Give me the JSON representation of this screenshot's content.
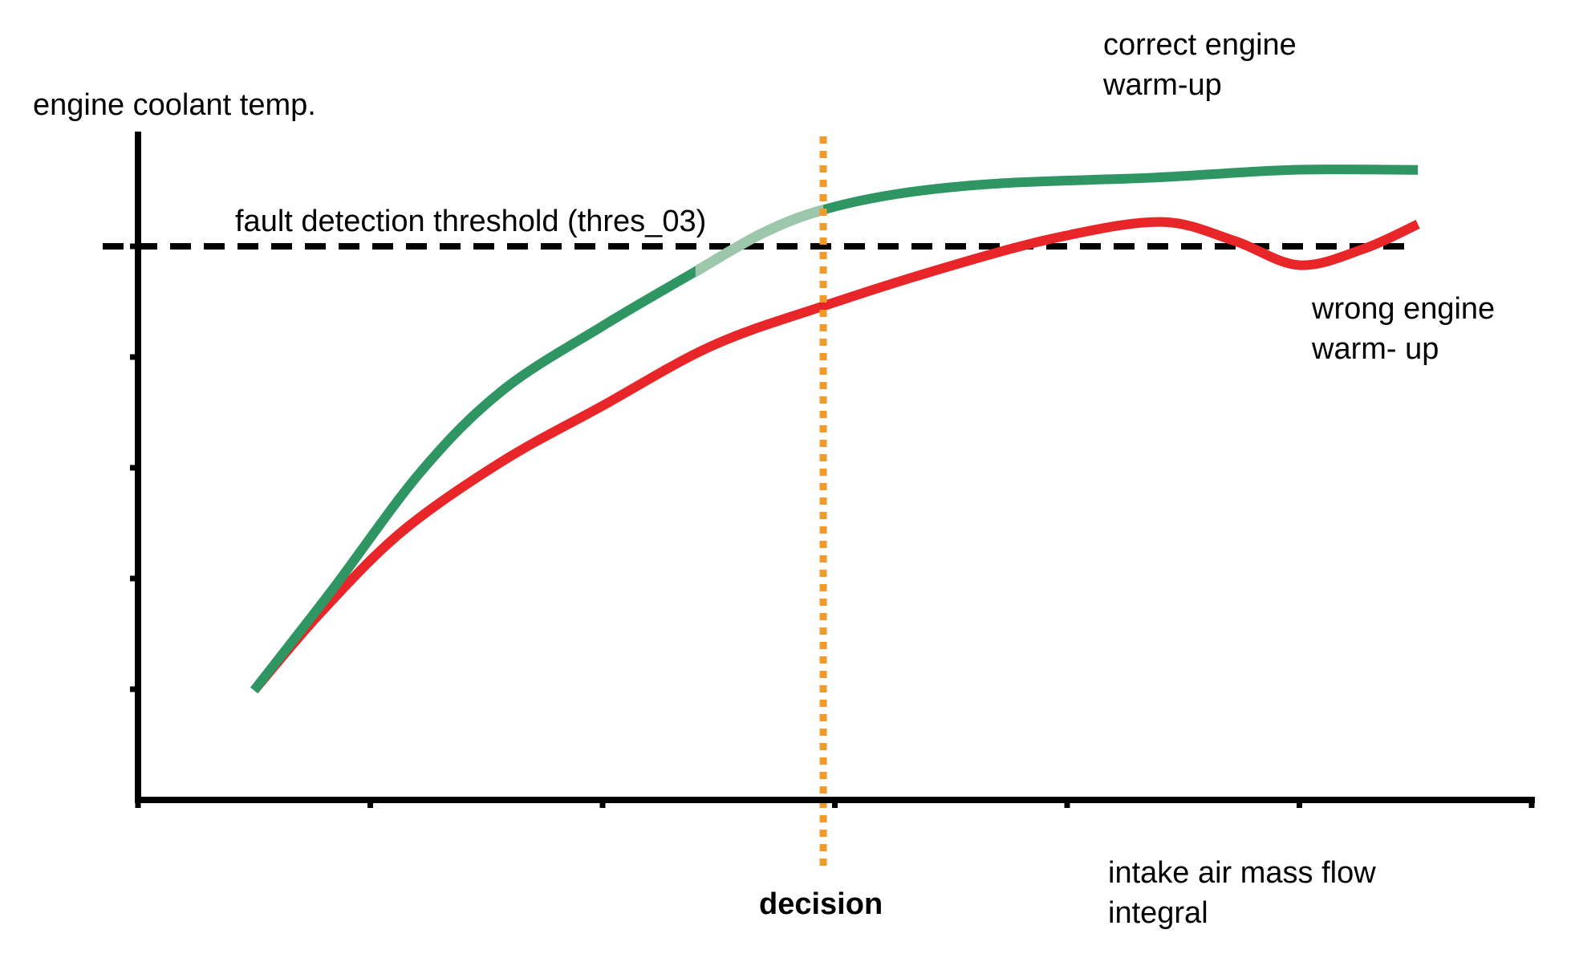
{
  "chart_data": {
    "type": "line",
    "title": "",
    "ylabel": "engine coolant temp.",
    "xlabel": [
      "intake air mass flow",
      "integral"
    ],
    "xlim": [
      0,
      6
    ],
    "ylim": [
      0,
      6
    ],
    "x_ticks": [
      0,
      1,
      2,
      3,
      4,
      5,
      6
    ],
    "y_ticks": [
      0,
      1,
      2,
      3,
      4,
      5
    ],
    "tick_labels_shown": false,
    "grid": false,
    "threshold": {
      "label": "fault detection threshold (thres_03)",
      "value": 5,
      "style": "dashed",
      "color": "#000000"
    },
    "decision": {
      "label": "decision",
      "x": 2.95,
      "style": "dotted",
      "color": "#f09a2a"
    },
    "series": [
      {
        "name": "correct engine warm-up",
        "label_lines": [
          "correct engine",
          "warm-up"
        ],
        "color": "#2e9563",
        "highlight_color": "#9cc7ab",
        "highlight_range": [
          2.4,
          2.95
        ],
        "points": [
          [
            0.5,
            0.99
          ],
          [
            0.83,
            1.88
          ],
          [
            1.22,
            2.97
          ],
          [
            1.57,
            3.7
          ],
          [
            2.0,
            4.28
          ],
          [
            2.39,
            4.76
          ],
          [
            2.69,
            5.12
          ],
          [
            2.95,
            5.33
          ],
          [
            3.29,
            5.48
          ],
          [
            3.72,
            5.57
          ],
          [
            4.37,
            5.62
          ],
          [
            4.97,
            5.69
          ],
          [
            5.51,
            5.69
          ]
        ]
      },
      {
        "name": "wrong engine warm- up",
        "label_lines": [
          "wrong engine",
          "warm- up"
        ],
        "color": "#e8262a",
        "points": [
          [
            0.5,
            0.99
          ],
          [
            0.79,
            1.7
          ],
          [
            1.14,
            2.43
          ],
          [
            1.57,
            3.06
          ],
          [
            2.0,
            3.56
          ],
          [
            2.47,
            4.1
          ],
          [
            2.95,
            4.46
          ],
          [
            3.51,
            4.83
          ],
          [
            3.98,
            5.09
          ],
          [
            4.41,
            5.22
          ],
          [
            4.72,
            5.05
          ],
          [
            5.0,
            4.83
          ],
          [
            5.28,
            4.98
          ],
          [
            5.51,
            5.2
          ]
        ]
      }
    ]
  }
}
